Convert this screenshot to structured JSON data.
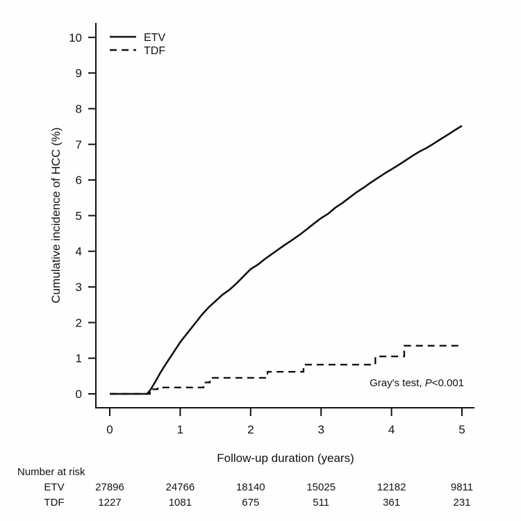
{
  "figure": {
    "background": "#fefefe",
    "line_color": "#111111"
  },
  "chart_data": {
    "type": "line",
    "title": "",
    "xlabel": "Follow-up duration (years)",
    "ylabel": "Cumulative incidence of HCC (%)",
    "xlim": [
      0,
      5
    ],
    "ylim": [
      0,
      10
    ],
    "xticks": [
      0,
      1,
      2,
      3,
      4,
      5
    ],
    "yticks": [
      0,
      1,
      2,
      3,
      4,
      5,
      6,
      7,
      8,
      9,
      10
    ],
    "grid": false,
    "legend_position": "top-left",
    "series": [
      {
        "name": "ETV",
        "style": "solid",
        "step": false,
        "points": [
          [
            0,
            0
          ],
          [
            0.53,
            0
          ],
          [
            0.58,
            0.12
          ],
          [
            0.65,
            0.35
          ],
          [
            0.72,
            0.6
          ],
          [
            0.8,
            0.85
          ],
          [
            0.9,
            1.15
          ],
          [
            1.0,
            1.45
          ],
          [
            1.1,
            1.7
          ],
          [
            1.2,
            1.95
          ],
          [
            1.3,
            2.2
          ],
          [
            1.4,
            2.42
          ],
          [
            1.5,
            2.6
          ],
          [
            1.6,
            2.78
          ],
          [
            1.7,
            2.92
          ],
          [
            1.8,
            3.1
          ],
          [
            1.9,
            3.3
          ],
          [
            2.0,
            3.5
          ],
          [
            2.1,
            3.62
          ],
          [
            2.2,
            3.78
          ],
          [
            2.3,
            3.92
          ],
          [
            2.4,
            4.06
          ],
          [
            2.5,
            4.2
          ],
          [
            2.6,
            4.33
          ],
          [
            2.7,
            4.47
          ],
          [
            2.8,
            4.62
          ],
          [
            2.9,
            4.78
          ],
          [
            3.0,
            4.93
          ],
          [
            3.1,
            5.05
          ],
          [
            3.2,
            5.22
          ],
          [
            3.3,
            5.35
          ],
          [
            3.4,
            5.5
          ],
          [
            3.5,
            5.65
          ],
          [
            3.6,
            5.78
          ],
          [
            3.7,
            5.92
          ],
          [
            3.8,
            6.05
          ],
          [
            3.9,
            6.18
          ],
          [
            4.0,
            6.3
          ],
          [
            4.1,
            6.42
          ],
          [
            4.2,
            6.55
          ],
          [
            4.3,
            6.68
          ],
          [
            4.4,
            6.8
          ],
          [
            4.5,
            6.9
          ],
          [
            4.6,
            7.02
          ],
          [
            4.7,
            7.15
          ],
          [
            4.8,
            7.27
          ],
          [
            4.9,
            7.4
          ],
          [
            5.0,
            7.52
          ]
        ]
      },
      {
        "name": "TDF",
        "style": "dashed",
        "step": true,
        "points": [
          [
            0,
            0
          ],
          [
            0.57,
            0
          ],
          [
            0.57,
            0.13
          ],
          [
            0.68,
            0.13
          ],
          [
            0.68,
            0.18
          ],
          [
            1.33,
            0.18
          ],
          [
            1.33,
            0.32
          ],
          [
            1.42,
            0.32
          ],
          [
            1.42,
            0.45
          ],
          [
            2.24,
            0.45
          ],
          [
            2.24,
            0.62
          ],
          [
            2.75,
            0.62
          ],
          [
            2.75,
            0.82
          ],
          [
            3.77,
            0.82
          ],
          [
            3.77,
            1.05
          ],
          [
            4.18,
            1.05
          ],
          [
            4.18,
            1.35
          ],
          [
            5.0,
            1.35
          ]
        ]
      }
    ],
    "annotation": {
      "prefix": "Gray's test, ",
      "italic": "P",
      "suffix": "<0.001"
    },
    "number_at_risk": {
      "title": "Number at risk",
      "times": [
        0,
        1,
        2,
        3,
        4,
        5
      ],
      "rows": [
        {
          "label": "ETV",
          "counts": [
            "27896",
            "24766",
            "18140",
            "15025",
            "12182",
            "9811"
          ]
        },
        {
          "label": "TDF",
          "counts": [
            "1227",
            "1081",
            "675",
            "511",
            "361",
            "231"
          ]
        }
      ]
    }
  }
}
